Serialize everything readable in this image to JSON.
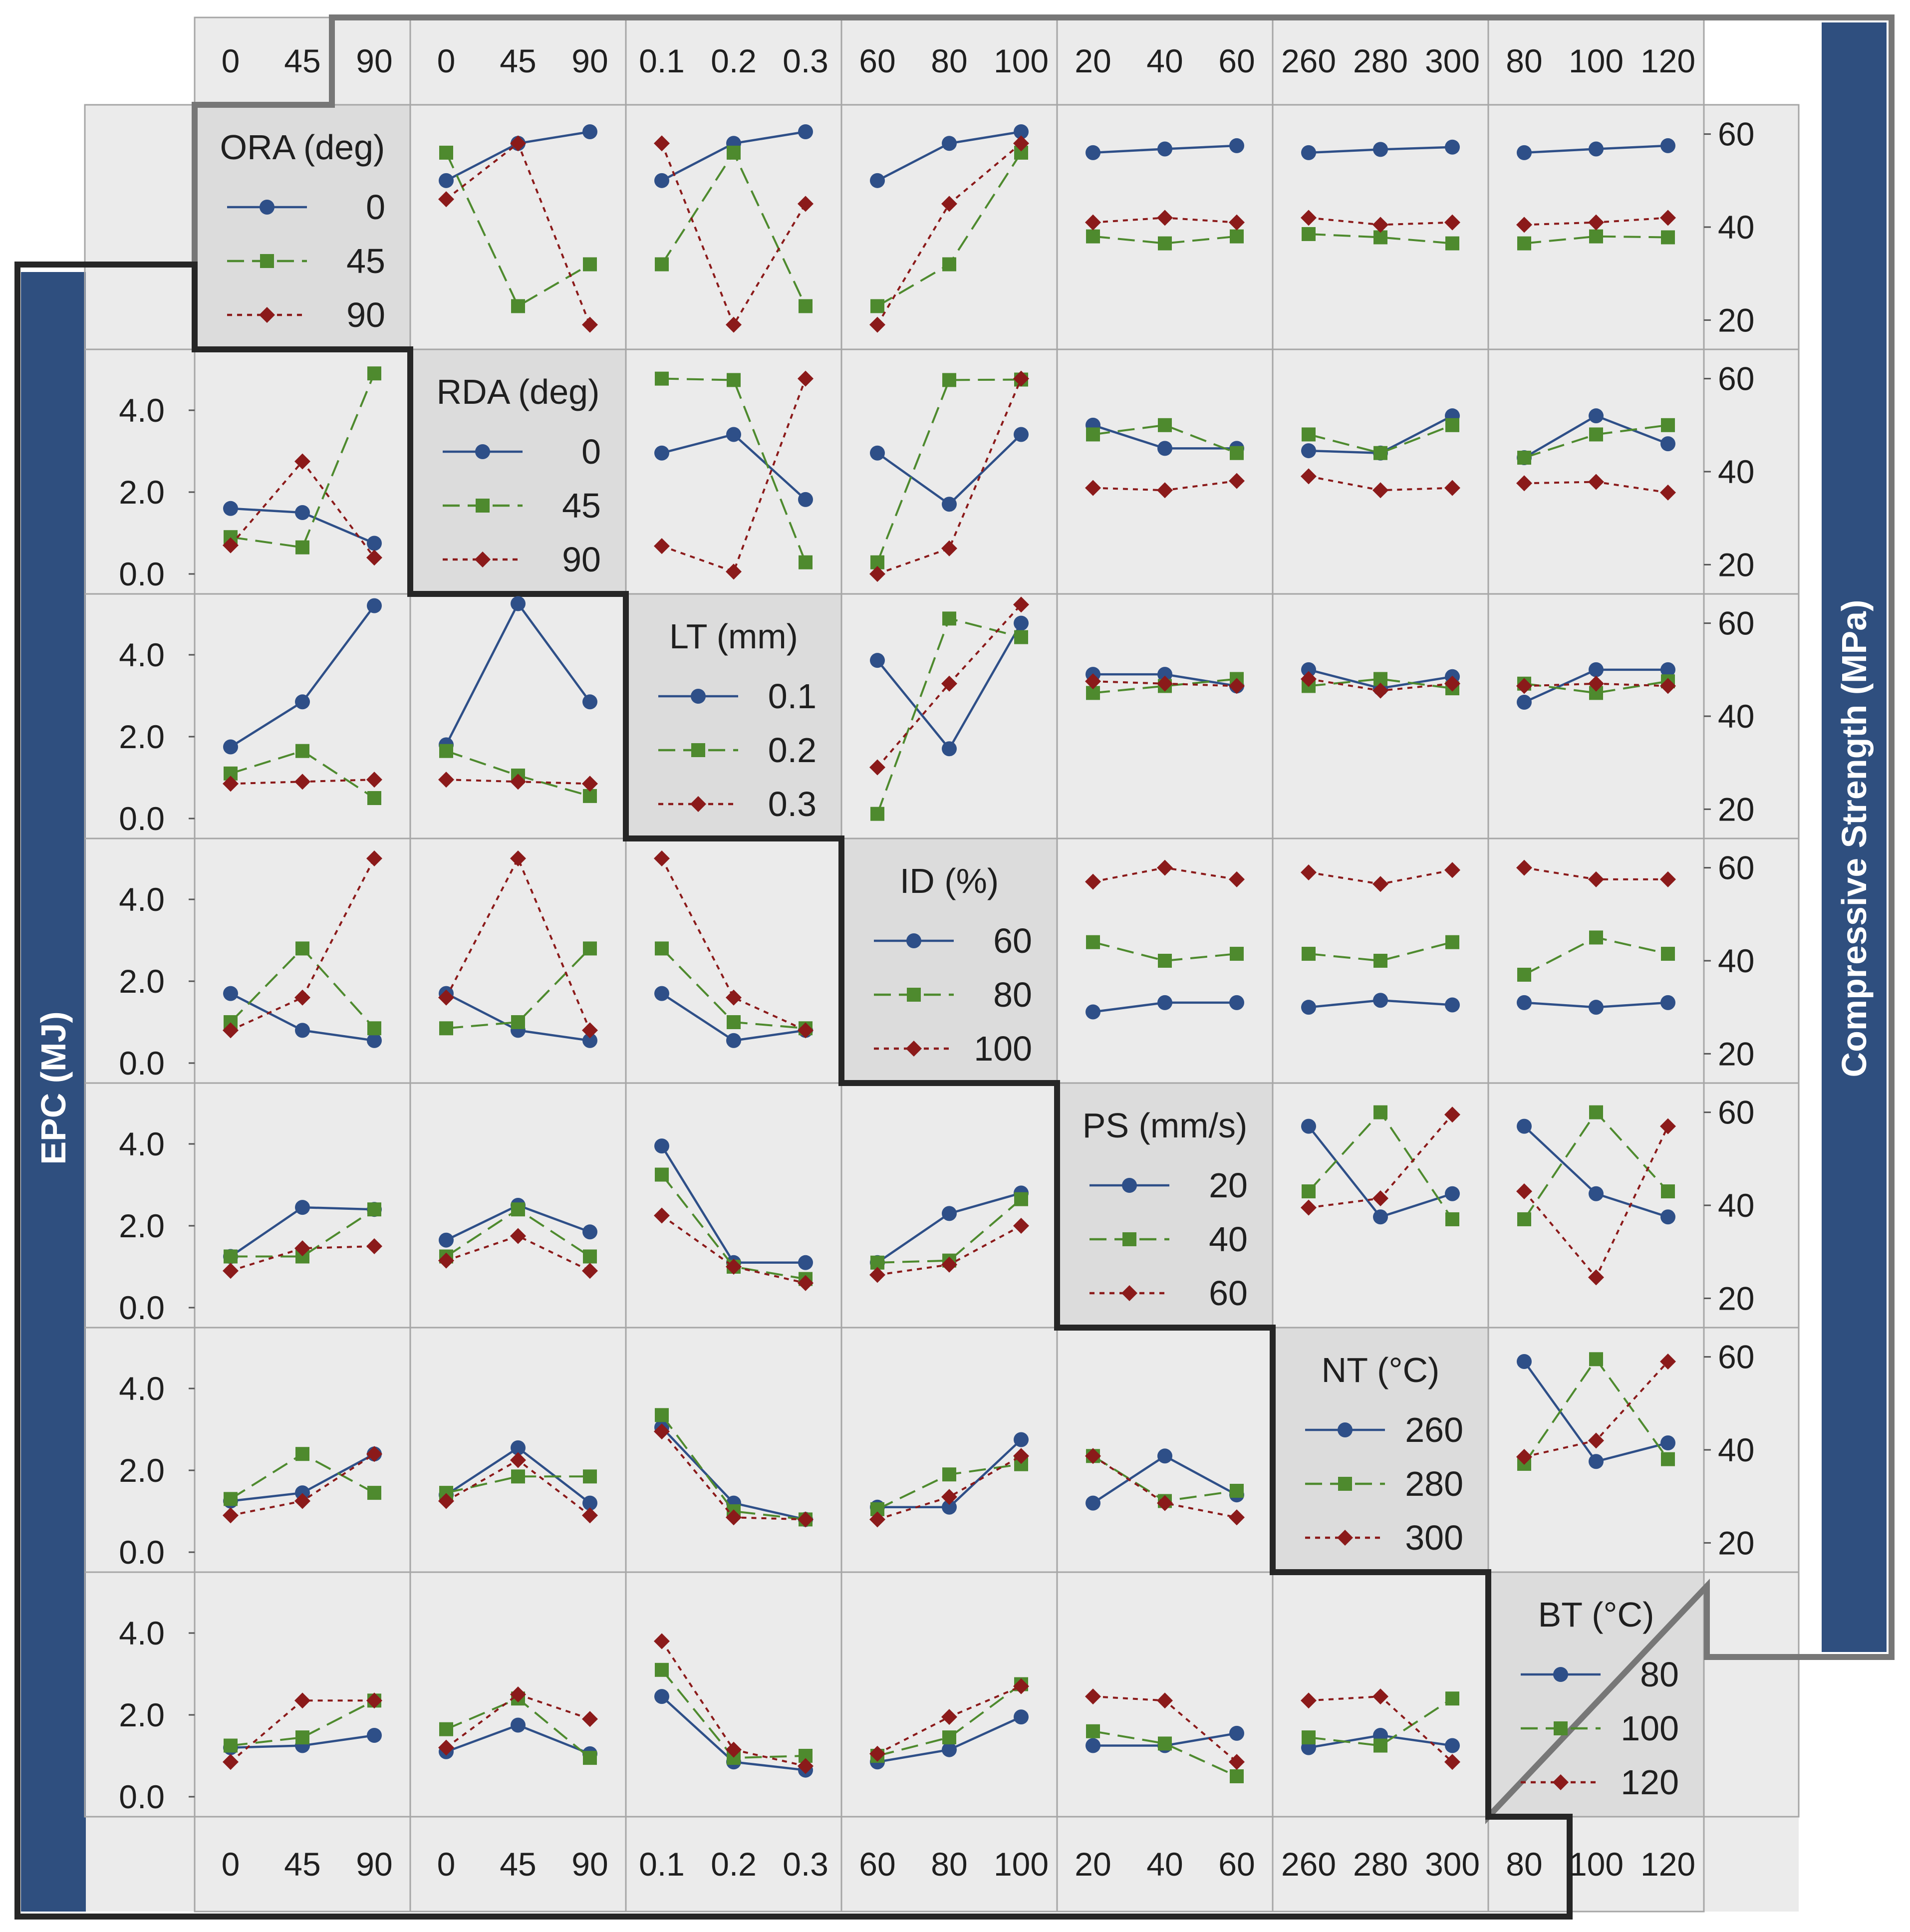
{
  "chart_data": {
    "type": "line",
    "description_axis_left": "EPC (MJ)",
    "description_axis_right": "Compressive Strength (MPa)",
    "left_axis": {
      "title": "EPC (MJ)",
      "ticks": [
        "4.0",
        "2.0",
        "0.0"
      ],
      "range": [
        0,
        5
      ]
    },
    "right_axis": {
      "title": "Compressive Strength (MPa)",
      "ticks": [
        "60",
        "40",
        "20"
      ],
      "range": [
        18,
        62
      ]
    },
    "factors": [
      {
        "name": "ORA (deg)",
        "levels": [
          "0",
          "45",
          "90"
        ]
      },
      {
        "name": "RDA (deg)",
        "levels": [
          "0",
          "45",
          "90"
        ]
      },
      {
        "name": "LT (mm)",
        "levels": [
          "0.1",
          "0.2",
          "0.3"
        ]
      },
      {
        "name": "ID (%)",
        "levels": [
          "60",
          "80",
          "100"
        ]
      },
      {
        "name": "PS (mm/s)",
        "levels": [
          "20",
          "40",
          "60"
        ]
      },
      {
        "name": "NT (°C)",
        "levels": [
          "260",
          "280",
          "300"
        ]
      },
      {
        "name": "BT (°C)",
        "levels": [
          "80",
          "100",
          "120"
        ]
      }
    ],
    "series_colors": [
      "#2e4f88",
      "#4e8a2e",
      "#8b1a1a"
    ],
    "series_styles": [
      "solid",
      "dash",
      "dot"
    ],
    "series_markers": [
      "circle",
      "square",
      "diamond"
    ],
    "cells": [
      {
        "row": 0,
        "col": 1,
        "metric": "CS",
        "values": [
          [
            50,
            58,
            60.5
          ],
          [
            56,
            23,
            32
          ],
          [
            46,
            58,
            19
          ]
        ]
      },
      {
        "row": 0,
        "col": 2,
        "metric": "CS",
        "values": [
          [
            50,
            58,
            60.5
          ],
          [
            32,
            56,
            23
          ],
          [
            58,
            19,
            45
          ]
        ]
      },
      {
        "row": 0,
        "col": 3,
        "metric": "CS",
        "values": [
          [
            50,
            58,
            60.5
          ],
          [
            23,
            32,
            56
          ],
          [
            19,
            45,
            58
          ]
        ]
      },
      {
        "row": 0,
        "col": 4,
        "metric": "CS",
        "values": [
          [
            56,
            56.8,
            57.5
          ],
          [
            38,
            36.5,
            38
          ],
          [
            41,
            42,
            41
          ]
        ]
      },
      {
        "row": 0,
        "col": 5,
        "metric": "CS",
        "values": [
          [
            56,
            56.7,
            57.2
          ],
          [
            38.5,
            37.8,
            36.5
          ],
          [
            42,
            40.5,
            41
          ]
        ]
      },
      {
        "row": 0,
        "col": 6,
        "metric": "CS",
        "values": [
          [
            56,
            56.8,
            57.5
          ],
          [
            36.5,
            38,
            37.8
          ],
          [
            40.5,
            41,
            42
          ]
        ]
      },
      {
        "row": 1,
        "col": 2,
        "metric": "CS",
        "values": [
          [
            44,
            48,
            34
          ],
          [
            60,
            59.7,
            20.5
          ],
          [
            24,
            18.5,
            60
          ]
        ]
      },
      {
        "row": 1,
        "col": 3,
        "metric": "CS",
        "values": [
          [
            44,
            33,
            48
          ],
          [
            20.5,
            59.7,
            59.8
          ],
          [
            18,
            23.5,
            60
          ]
        ]
      },
      {
        "row": 1,
        "col": 4,
        "metric": "CS",
        "values": [
          [
            50,
            45,
            45
          ],
          [
            48,
            50,
            44
          ],
          [
            36.5,
            36,
            38
          ]
        ]
      },
      {
        "row": 1,
        "col": 5,
        "metric": "CS",
        "values": [
          [
            44.5,
            44,
            52
          ],
          [
            48,
            44,
            50
          ],
          [
            39,
            36,
            36.5
          ]
        ]
      },
      {
        "row": 1,
        "col": 6,
        "metric": "CS",
        "values": [
          [
            43,
            52,
            46
          ],
          [
            43,
            48,
            50
          ],
          [
            37.5,
            37.8,
            35.5
          ]
        ]
      },
      {
        "row": 2,
        "col": 3,
        "metric": "CS",
        "values": [
          [
            52,
            33,
            60
          ],
          [
            19,
            61,
            57
          ],
          [
            29,
            47,
            64
          ]
        ]
      },
      {
        "row": 2,
        "col": 4,
        "metric": "CS",
        "values": [
          [
            49,
            49,
            46.5
          ],
          [
            45,
            46.5,
            48
          ],
          [
            47.5,
            47,
            46.5
          ]
        ]
      },
      {
        "row": 2,
        "col": 5,
        "metric": "CS",
        "values": [
          [
            50,
            46,
            48.5
          ],
          [
            46.5,
            48,
            46
          ],
          [
            48,
            45.5,
            47
          ]
        ]
      },
      {
        "row": 2,
        "col": 6,
        "metric": "CS",
        "values": [
          [
            43,
            50,
            50
          ],
          [
            47,
            45,
            47.5
          ],
          [
            46.5,
            47,
            46.5
          ]
        ]
      },
      {
        "row": 3,
        "col": 4,
        "metric": "CS",
        "values": [
          [
            29,
            31,
            31
          ],
          [
            44,
            40,
            41.5
          ],
          [
            57,
            60,
            57.5
          ]
        ]
      },
      {
        "row": 3,
        "col": 5,
        "metric": "CS",
        "values": [
          [
            30,
            31.5,
            30.5
          ],
          [
            41.5,
            40,
            44
          ],
          [
            59,
            56.5,
            59.5
          ]
        ]
      },
      {
        "row": 3,
        "col": 6,
        "metric": "CS",
        "values": [
          [
            31,
            30,
            31
          ],
          [
            37,
            45,
            41.5
          ],
          [
            60,
            57.5,
            57.5
          ]
        ]
      },
      {
        "row": 4,
        "col": 5,
        "metric": "CS",
        "values": [
          [
            57,
            37.5,
            42.5
          ],
          [
            43,
            60,
            37
          ],
          [
            39.5,
            41.5,
            59.5
          ]
        ]
      },
      {
        "row": 4,
        "col": 6,
        "metric": "CS",
        "values": [
          [
            57,
            42.5,
            37.5
          ],
          [
            37,
            60,
            43
          ],
          [
            43,
            24.5,
            57
          ]
        ]
      },
      {
        "row": 5,
        "col": 6,
        "metric": "CS",
        "values": [
          [
            59,
            37.5,
            41.5
          ],
          [
            37,
            59.5,
            38
          ],
          [
            38.5,
            42,
            59
          ]
        ]
      },
      {
        "row": 1,
        "col": 0,
        "metric": "EPC",
        "values": [
          [
            1.6,
            1.5,
            0.75
          ],
          [
            0.9,
            0.65,
            4.9
          ],
          [
            0.7,
            2.75,
            0.4
          ]
        ]
      },
      {
        "row": 2,
        "col": 0,
        "metric": "EPC",
        "values": [
          [
            1.75,
            2.85,
            5.2
          ],
          [
            1.1,
            1.65,
            0.5
          ],
          [
            0.85,
            0.9,
            0.95
          ]
        ]
      },
      {
        "row": 2,
        "col": 1,
        "metric": "EPC",
        "values": [
          [
            1.8,
            5.25,
            2.85
          ],
          [
            1.65,
            1.05,
            0.55
          ],
          [
            0.95,
            0.9,
            0.85
          ]
        ]
      },
      {
        "row": 3,
        "col": 0,
        "metric": "EPC",
        "values": [
          [
            1.7,
            0.8,
            0.55
          ],
          [
            1.0,
            2.8,
            0.85
          ],
          [
            0.8,
            1.6,
            5.0
          ]
        ]
      },
      {
        "row": 3,
        "col": 1,
        "metric": "EPC",
        "values": [
          [
            1.7,
            0.8,
            0.55
          ],
          [
            0.85,
            1.0,
            2.8
          ],
          [
            1.6,
            5.0,
            0.8
          ]
        ]
      },
      {
        "row": 3,
        "col": 2,
        "metric": "EPC",
        "values": [
          [
            1.7,
            0.55,
            0.8
          ],
          [
            2.8,
            1.0,
            0.85
          ],
          [
            5.0,
            1.6,
            0.8
          ]
        ]
      },
      {
        "row": 4,
        "col": 0,
        "metric": "EPC",
        "values": [
          [
            1.25,
            2.45,
            2.4
          ],
          [
            1.25,
            1.25,
            2.4
          ],
          [
            0.9,
            1.45,
            1.5
          ]
        ]
      },
      {
        "row": 4,
        "col": 1,
        "metric": "EPC",
        "values": [
          [
            1.65,
            2.5,
            1.85
          ],
          [
            1.25,
            2.4,
            1.25
          ],
          [
            1.15,
            1.75,
            0.9
          ]
        ]
      },
      {
        "row": 4,
        "col": 2,
        "metric": "EPC",
        "values": [
          [
            3.95,
            1.1,
            1.1
          ],
          [
            3.25,
            1.0,
            0.7
          ],
          [
            2.25,
            1.0,
            0.6
          ]
        ]
      },
      {
        "row": 4,
        "col": 3,
        "metric": "EPC",
        "values": [
          [
            1.1,
            2.3,
            2.8
          ],
          [
            1.1,
            1.15,
            2.65
          ],
          [
            0.8,
            1.05,
            2.0
          ]
        ]
      },
      {
        "row": 5,
        "col": 0,
        "metric": "EPC",
        "values": [
          [
            1.25,
            1.45,
            2.4
          ],
          [
            1.3,
            2.4,
            1.45
          ],
          [
            0.9,
            1.25,
            2.4
          ]
        ]
      },
      {
        "row": 5,
        "col": 1,
        "metric": "EPC",
        "values": [
          [
            1.4,
            2.55,
            1.2
          ],
          [
            1.45,
            1.85,
            1.85
          ],
          [
            1.25,
            2.25,
            0.9
          ]
        ]
      },
      {
        "row": 5,
        "col": 2,
        "metric": "EPC",
        "values": [
          [
            3.05,
            1.2,
            0.8
          ],
          [
            3.35,
            1.0,
            0.8
          ],
          [
            2.95,
            0.85,
            0.8
          ]
        ]
      },
      {
        "row": 5,
        "col": 3,
        "metric": "EPC",
        "values": [
          [
            1.1,
            1.1,
            2.75
          ],
          [
            1.05,
            1.9,
            2.15
          ],
          [
            0.8,
            1.35,
            2.35
          ]
        ]
      },
      {
        "row": 5,
        "col": 4,
        "metric": "EPC",
        "values": [
          [
            1.2,
            2.35,
            1.4
          ],
          [
            2.35,
            1.25,
            1.5
          ],
          [
            2.35,
            1.2,
            0.85
          ]
        ]
      },
      {
        "row": 6,
        "col": 0,
        "metric": "EPC",
        "values": [
          [
            1.2,
            1.25,
            1.5
          ],
          [
            1.25,
            1.45,
            2.35
          ],
          [
            0.85,
            2.35,
            2.35
          ]
        ]
      },
      {
        "row": 6,
        "col": 1,
        "metric": "EPC",
        "values": [
          [
            1.1,
            1.75,
            1.05
          ],
          [
            1.65,
            2.4,
            0.95
          ],
          [
            1.2,
            2.5,
            1.9
          ]
        ]
      },
      {
        "row": 6,
        "col": 2,
        "metric": "EPC",
        "values": [
          [
            2.45,
            0.85,
            0.65
          ],
          [
            3.1,
            0.95,
            1.0
          ],
          [
            3.8,
            1.15,
            0.75
          ]
        ]
      },
      {
        "row": 6,
        "col": 3,
        "metric": "EPC",
        "values": [
          [
            0.85,
            1.15,
            1.95
          ],
          [
            1.0,
            1.45,
            2.75
          ],
          [
            1.05,
            1.95,
            2.7
          ]
        ]
      },
      {
        "row": 6,
        "col": 4,
        "metric": "EPC",
        "values": [
          [
            1.25,
            1.25,
            1.55
          ],
          [
            1.6,
            1.3,
            0.5
          ],
          [
            2.45,
            2.35,
            0.85
          ]
        ]
      },
      {
        "row": 6,
        "col": 5,
        "metric": "EPC",
        "values": [
          [
            1.2,
            1.5,
            1.25
          ],
          [
            1.45,
            1.25,
            2.4
          ],
          [
            2.35,
            2.45,
            0.85
          ]
        ]
      }
    ]
  }
}
